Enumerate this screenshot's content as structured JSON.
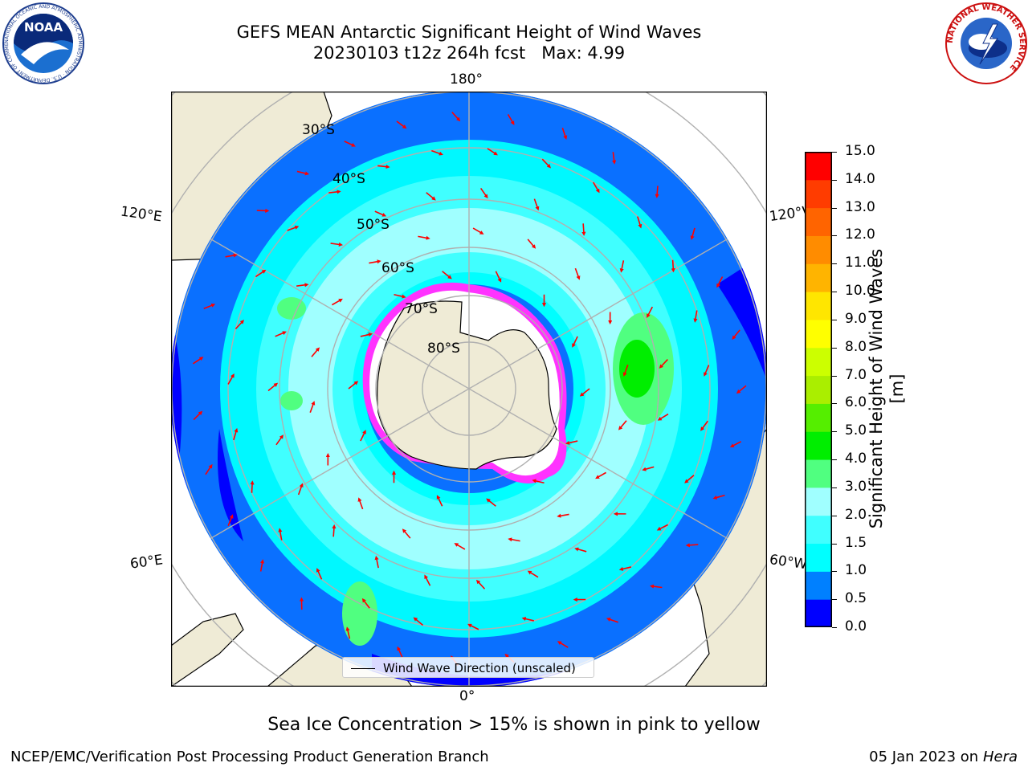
{
  "title": "GEFS MEAN Antarctic Significant Height of Wind Waves",
  "subtitle": "20230103 t12z 264h fcst   Max: 4.99",
  "logos": {
    "left": "NOAA",
    "left_ring": "NATIONAL OCEANIC AND ATMOSPHERIC ADMINISTRATION · U.S. DEPARTMENT OF COMMERCE",
    "right_ring": "NATIONAL WEATHER SERVICE"
  },
  "map": {
    "projection": "south-polar-stereographic",
    "lon_labels": {
      "top": "180°",
      "bottom": "0°",
      "left_upper": "120°E",
      "left_lower": "60°E",
      "right_upper": "120°W",
      "right_lower": "60°W"
    },
    "lat_labels": [
      "30°S",
      "40°S",
      "50°S",
      "60°S",
      "70°S",
      "80°S"
    ],
    "colors": {
      "land": "#efebd6",
      "coast": "#000000",
      "grid": "#b0b0b0",
      "arrow": "#ff0000",
      "ice_pink": "#ff33ff",
      "ice_white": "#ffffff"
    },
    "legend": "Wind Wave Direction (unscaled)"
  },
  "colorbar": {
    "title": "Significant Height of Wind Waves [m]",
    "ticks": [
      "0.0",
      "0.5",
      "1.0",
      "1.5",
      "2.0",
      "3.0",
      "4.0",
      "5.0",
      "6.0",
      "7.0",
      "8.0",
      "9.0",
      "10.0",
      "11.0",
      "12.0",
      "13.0",
      "14.0",
      "15.0"
    ],
    "colors": [
      "#0000ff",
      "#0080ff",
      "#00ffff",
      "#40ffff",
      "#a0ffff",
      "#50ff80",
      "#00ee00",
      "#55ee00",
      "#aaee00",
      "#ccff00",
      "#ffff00",
      "#ffe600",
      "#ffb400",
      "#ff8c00",
      "#ff6400",
      "#ff3c00",
      "#ff0000"
    ]
  },
  "note": "Sea Ice Concentration > 15% is shown in pink to yellow",
  "footer": {
    "left": "NCEP/EMC/Verification Post Processing Product Generation Branch",
    "right_date": "05 Jan 2023 on ",
    "right_host": "Hera"
  }
}
